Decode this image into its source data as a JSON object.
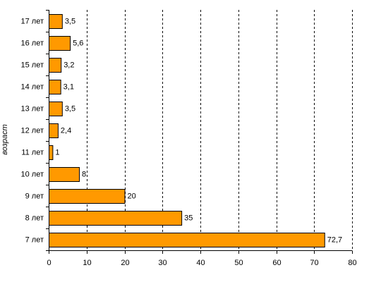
{
  "chart_data": {
    "type": "bar",
    "orientation": "horizontal",
    "categories": [
      "17 лет",
      "16 лет",
      "15 лет",
      "14 лет",
      "13 лет",
      "12 лет",
      "11 лет",
      "10 лет",
      "9 лет",
      "8 лет",
      "7 лет"
    ],
    "values": [
      3.5,
      5.6,
      3.2,
      3.1,
      3.5,
      2.4,
      1,
      8,
      20,
      35,
      72.7
    ],
    "data_labels": [
      "3,5",
      "5,6",
      "3,2",
      "3,1",
      "3,5",
      "2,4",
      "1",
      "8",
      "20",
      "35",
      "72,7"
    ],
    "x_ticks": [
      "0",
      "10",
      "20",
      "30",
      "40",
      "50",
      "60",
      "70",
      "80"
    ],
    "xlim": [
      0,
      80
    ],
    "ylabel": "возраст",
    "xlabel": "",
    "title": "",
    "grid": "vertical dashed",
    "legend": "none",
    "colors": {
      "bar_fill": "#FF9900",
      "bar_stroke": "#000000",
      "grid": "#000000",
      "axis": "#000000"
    }
  }
}
